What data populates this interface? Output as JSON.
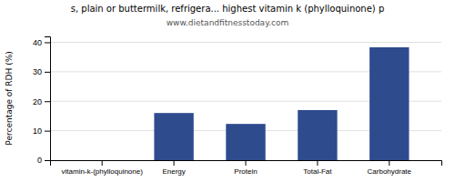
{
  "chart_data": {
    "type": "bar",
    "title": "s, plain or buttermilk, refrigera... highest vitamin k (phylloquinone) p",
    "subtitle": "www.dietandfitnesstoday.com",
    "categories": [
      "vitamin-k-(phylloquinone)",
      "Energy",
      "Protein",
      "Total-Fat",
      "Carbohydrate"
    ],
    "values": [
      0,
      16.0,
      12.3,
      17.0,
      38.3
    ],
    "color": "#2e4b8e",
    "ylabel": "Percentage of RDH (%)",
    "ylim": [
      0,
      42
    ],
    "yticks": [
      0,
      10,
      20,
      30,
      40
    ],
    "grid": true
  }
}
